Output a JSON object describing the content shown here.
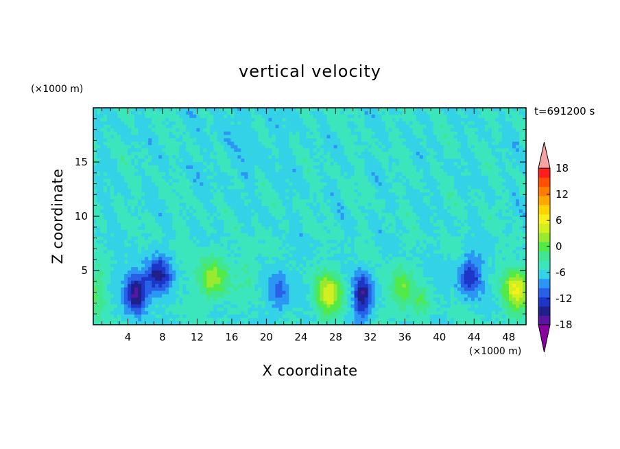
{
  "chart_data": {
    "type": "heatmap",
    "title": "vertical velocity",
    "xlabel": "X coordinate",
    "ylabel": "Z coordinate",
    "x_unit": "(×1000 m)",
    "y_unit": "(×1000 m)",
    "time_label": "t=691200 s",
    "xlim": [
      0,
      50
    ],
    "ylim": [
      0,
      20
    ],
    "xticks": [
      4,
      8,
      12,
      16,
      20,
      24,
      28,
      32,
      36,
      40,
      44,
      48
    ],
    "yticks": [
      5,
      10,
      15
    ],
    "colorbar": {
      "range": [
        -21,
        21
      ],
      "step": 3,
      "tick_labels": [
        "18",
        "12",
        "6",
        "0",
        "-6",
        "-12",
        "-18"
      ],
      "tick_values": [
        18,
        12,
        6,
        0,
        -6,
        -12,
        -18
      ],
      "colors": [
        "#8b00a0",
        "#5a16a0",
        "#20208c",
        "#1e36c8",
        "#2860e8",
        "#2c96f5",
        "#34d2e6",
        "#3ce6bc",
        "#40e690",
        "#52ea46",
        "#98ea30",
        "#d2f020",
        "#f8f018",
        "#ffd400",
        "#ffa800",
        "#ff7c00",
        "#ff5000",
        "#ff1e1e",
        "#f7a3a3"
      ],
      "extend_low_color": "#8b00a0",
      "extend_high_color": "#f7a3a3"
    },
    "features": [
      {
        "x": 5.0,
        "z": 3.0,
        "amp": -16,
        "sx": 1.3,
        "sz": 1.8
      },
      {
        "x": 7.5,
        "z": 4.5,
        "amp": -13,
        "sx": 1.4,
        "sz": 1.6
      },
      {
        "x": 13.8,
        "z": 4.2,
        "amp": 11,
        "sx": 1.6,
        "sz": 2.0
      },
      {
        "x": 21.5,
        "z": 3.0,
        "amp": -7,
        "sx": 1.2,
        "sz": 2.2
      },
      {
        "x": 27.2,
        "z": 2.8,
        "amp": 13,
        "sx": 1.6,
        "sz": 2.0
      },
      {
        "x": 31.2,
        "z": 2.6,
        "amp": -15,
        "sx": 1.1,
        "sz": 2.0
      },
      {
        "x": 35.5,
        "z": 3.2,
        "amp": 9,
        "sx": 1.3,
        "sz": 2.0
      },
      {
        "x": 38.0,
        "z": 2.0,
        "amp": 5,
        "sx": 1.0,
        "sz": 1.5
      },
      {
        "x": 43.5,
        "z": 4.5,
        "amp": -12,
        "sx": 1.3,
        "sz": 1.8
      },
      {
        "x": 49.0,
        "z": 3.2,
        "amp": 15,
        "sx": 1.5,
        "sz": 2.0
      },
      {
        "x": 0.5,
        "z": 3.0,
        "amp": 6,
        "sx": 1.0,
        "sz": 2.0
      },
      {
        "x": 18.0,
        "z": 5.0,
        "amp": 4,
        "sx": 1.0,
        "sz": 2.0
      }
    ]
  }
}
